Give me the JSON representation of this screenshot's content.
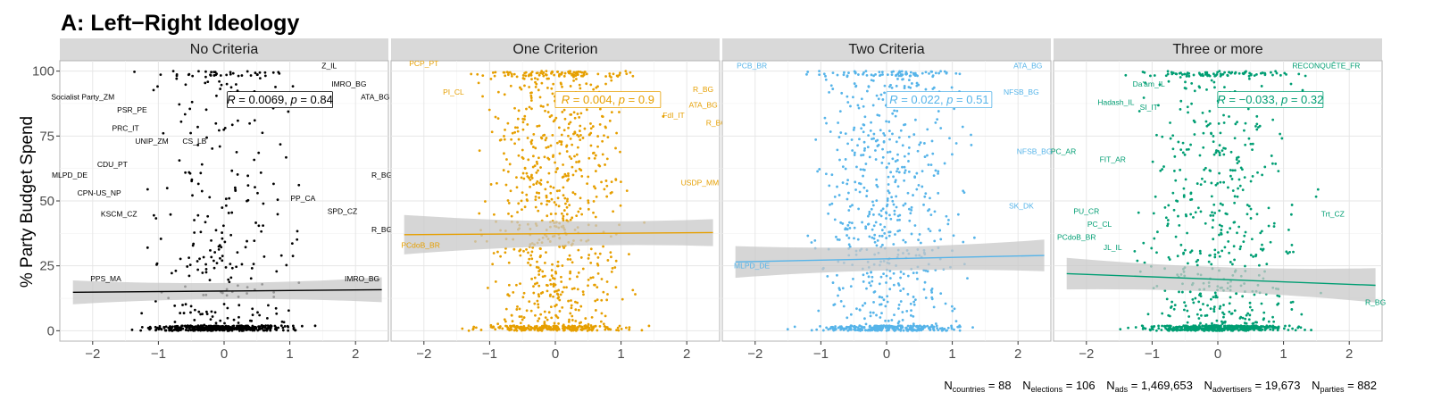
{
  "chart_data": {
    "type": "scatter",
    "title": "A: Left−Right Ideology",
    "ylabel": "% Party Budget Spend",
    "xlabel": "",
    "xlim": [
      -2.5,
      2.5
    ],
    "ylim": [
      -4,
      104
    ],
    "x_ticks": [
      "−2",
      "−1",
      "0",
      "1",
      "2"
    ],
    "y_ticks": [
      "0",
      "25",
      "50",
      "75",
      "100"
    ],
    "grid": true,
    "legend": "none",
    "panels": [
      {
        "name": "No Criteria",
        "color": "#000000",
        "band_color": "#c8c8c8",
        "fit": {
          "x": [
            -2.3,
            2.4
          ],
          "y": [
            14.8,
            15.8
          ],
          "band": [
            3.0,
            3.2
          ]
        },
        "stat": {
          "r": "0.0069",
          "p": "0.84",
          "x": 0.85,
          "y": 89
        },
        "labels": [
          {
            "text": "Z_IL",
            "x": 1.6,
            "y": 101
          },
          {
            "text": "IMRO_BG",
            "x": 1.9,
            "y": 94
          },
          {
            "text": "ATA_BG",
            "x": 2.3,
            "y": 89
          },
          {
            "text": "Socialist Party_ZM",
            "x": -2.15,
            "y": 89
          },
          {
            "text": "PSR_PE",
            "x": -1.4,
            "y": 84
          },
          {
            "text": "PRC_IT",
            "x": -1.5,
            "y": 77
          },
          {
            "text": "UNIP_ZM",
            "x": -1.1,
            "y": 72
          },
          {
            "text": "CS_LB",
            "x": -0.45,
            "y": 72
          },
          {
            "text": "CDU_PT",
            "x": -1.7,
            "y": 63
          },
          {
            "text": "MLPD_DE",
            "x": -2.35,
            "y": 59
          },
          {
            "text": "R_BG",
            "x": 2.4,
            "y": 59
          },
          {
            "text": "CPN-US_NP",
            "x": -1.9,
            "y": 52
          },
          {
            "text": "PP_CA",
            "x": 1.2,
            "y": 50
          },
          {
            "text": "SPD_CZ",
            "x": 1.8,
            "y": 45
          },
          {
            "text": "KSCM_CZ",
            "x": -1.6,
            "y": 44
          },
          {
            "text": "R_BG",
            "x": 2.4,
            "y": 38
          },
          {
            "text": "PPS_MA",
            "x": -1.8,
            "y": 19
          },
          {
            "text": "IMRO_BG",
            "x": 2.1,
            "y": 19
          }
        ]
      },
      {
        "name": "One Criterion",
        "color": "#E69F00",
        "band_color": "#c8c8c8",
        "fit": {
          "x": [
            -2.3,
            2.4
          ],
          "y": [
            37.0,
            37.8
          ],
          "band": [
            6.0,
            3.6
          ]
        },
        "stat": {
          "r": "0.004",
          "p": "0.9",
          "x": 0.8,
          "y": 89
        },
        "labels": [
          {
            "text": "PCP_PT",
            "x": -2.0,
            "y": 102
          },
          {
            "text": "PI_CL",
            "x": -1.55,
            "y": 91
          },
          {
            "text": "R_BG",
            "x": 2.25,
            "y": 92
          },
          {
            "text": "ATA_BG",
            "x": 2.25,
            "y": 86
          },
          {
            "text": "FdI_IT",
            "x": 1.8,
            "y": 82
          },
          {
            "text": "R_BG",
            "x": 2.45,
            "y": 79
          },
          {
            "text": "USDP_MM",
            "x": 2.2,
            "y": 56
          },
          {
            "text": "PCdoB_BR",
            "x": -2.05,
            "y": 32
          }
        ]
      },
      {
        "name": "Two Criteria",
        "color": "#56B4E9",
        "band_color": "#c8c8c8",
        "fit": {
          "x": [
            -2.3,
            2.4
          ],
          "y": [
            26.5,
            29.0
          ],
          "band": [
            4.5,
            4.5
          ]
        },
        "stat": {
          "r": "0.022",
          "p": "0.51",
          "x": 0.8,
          "y": 89
        },
        "labels": [
          {
            "text": "PCB_BR",
            "x": -2.05,
            "y": 101
          },
          {
            "text": "ATA_BG",
            "x": 2.15,
            "y": 101
          },
          {
            "text": "NFSB_BG",
            "x": 2.05,
            "y": 91
          },
          {
            "text": "NFSB_BG",
            "x": 2.25,
            "y": 68
          },
          {
            "text": "SK_DK",
            "x": 2.05,
            "y": 47
          },
          {
            "text": "MLPD_DE",
            "x": -2.05,
            "y": 24
          }
        ]
      },
      {
        "name": "Three or more",
        "color": "#009E73",
        "band_color": "#c8c8c8",
        "fit": {
          "x": [
            -2.3,
            2.4
          ],
          "y": [
            22.0,
            17.5
          ],
          "band": [
            4.5,
            5.0
          ]
        },
        "stat": {
          "r": "−0.033",
          "p": "0.32",
          "x": 0.8,
          "y": 89
        },
        "labels": [
          {
            "text": "RECONQUÊTE_FR",
            "x": 1.65,
            "y": 101
          },
          {
            "text": "Da'am_IL",
            "x": -1.05,
            "y": 94
          },
          {
            "text": "Hadash_IL",
            "x": -1.55,
            "y": 87
          },
          {
            "text": "SI_IT",
            "x": -1.05,
            "y": 85
          },
          {
            "text": "PC_AR",
            "x": -2.35,
            "y": 68
          },
          {
            "text": "FIT_AR",
            "x": -1.6,
            "y": 65
          },
          {
            "text": "PU_CR",
            "x": -2.0,
            "y": 45
          },
          {
            "text": "Trt_CZ",
            "x": 1.75,
            "y": 44
          },
          {
            "text": "PC_CL",
            "x": -1.8,
            "y": 40
          },
          {
            "text": "PCdoB_BR",
            "x": -2.15,
            "y": 35
          },
          {
            "text": "JL_IL",
            "x": -1.6,
            "y": 31
          },
          {
            "text": "R_BG",
            "x": 2.4,
            "y": 10
          }
        ]
      }
    ],
    "footer": {
      "countries_label": "N",
      "countries_sub": "countries",
      "countries_value": " = 88",
      "elections_label": "N",
      "elections_sub": "elections",
      "elections_value": " = 106",
      "ads_label": "N",
      "ads_sub": "ads",
      "ads_value": " = 1,469,653",
      "advertisers_label": "N",
      "advertisers_sub": "advertisers",
      "advertisers_value": " = 19,673",
      "parties_label": "N",
      "parties_sub": "parties",
      "parties_value": " = 882"
    }
  }
}
